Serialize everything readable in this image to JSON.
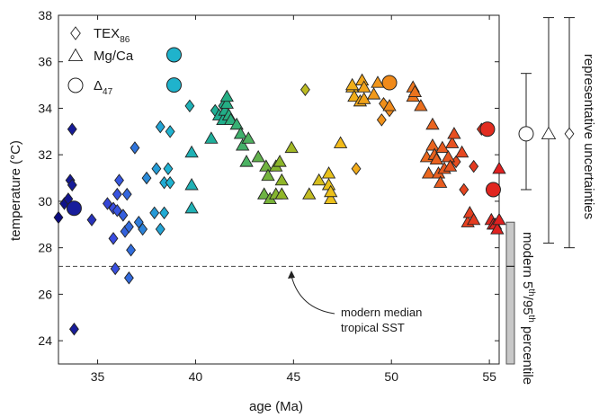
{
  "chart_data": {
    "type": "scatter",
    "xlabel": "age (Ma)",
    "ylabel": "temperature (°C)",
    "xlim": [
      33,
      55.5
    ],
    "ylim": [
      23,
      38
    ],
    "xticks": [
      35,
      40,
      45,
      50,
      55
    ],
    "yticks": [
      24,
      26,
      28,
      30,
      32,
      34,
      36,
      38
    ],
    "grid": false,
    "legend_placement": "top-left",
    "series": [
      {
        "name": "TEX86",
        "marker": "diamond",
        "points": [
          [
            33.0,
            29.3
          ],
          [
            33.3,
            29.9
          ],
          [
            33.5,
            30.1
          ],
          [
            33.6,
            30.9
          ],
          [
            33.7,
            30.7
          ],
          [
            33.7,
            33.1
          ],
          [
            33.8,
            24.5
          ],
          [
            34.7,
            29.2
          ],
          [
            35.5,
            29.9
          ],
          [
            35.8,
            29.7
          ],
          [
            35.8,
            28.4
          ],
          [
            35.9,
            27.1
          ],
          [
            36.0,
            29.6
          ],
          [
            36.0,
            30.3
          ],
          [
            36.1,
            30.9
          ],
          [
            36.3,
            29.4
          ],
          [
            36.4,
            28.7
          ],
          [
            36.5,
            30.3
          ],
          [
            36.6,
            28.9
          ],
          [
            36.6,
            26.7
          ],
          [
            36.7,
            27.9
          ],
          [
            36.9,
            32.3
          ],
          [
            37.1,
            29.1
          ],
          [
            37.3,
            28.8
          ],
          [
            37.5,
            31.0
          ],
          [
            37.9,
            29.5
          ],
          [
            38.0,
            31.4
          ],
          [
            38.2,
            28.8
          ],
          [
            38.2,
            33.2
          ],
          [
            38.4,
            30.8
          ],
          [
            38.4,
            29.5
          ],
          [
            38.6,
            31.4
          ],
          [
            38.7,
            30.8
          ],
          [
            38.7,
            33.0
          ],
          [
            39.7,
            34.1
          ],
          [
            41.0,
            33.9
          ],
          [
            41.4,
            34.1
          ],
          [
            45.6,
            34.8
          ],
          [
            48.2,
            31.4
          ],
          [
            49.5,
            33.5
          ],
          [
            49.6,
            34.2
          ],
          [
            49.9,
            33.9
          ],
          [
            53.3,
            31.7
          ],
          [
            53.7,
            30.5
          ],
          [
            54.2,
            31.5
          ],
          [
            54.6,
            33.1
          ]
        ]
      },
      {
        "name": "Mg/Ca",
        "marker": "triangle",
        "points": [
          [
            39.8,
            32.1
          ],
          [
            39.8,
            30.7
          ],
          [
            39.8,
            29.7
          ],
          [
            40.8,
            32.7
          ],
          [
            41.2,
            33.7
          ],
          [
            41.4,
            33.5
          ],
          [
            41.5,
            33.9
          ],
          [
            41.6,
            34.2
          ],
          [
            41.6,
            34.5
          ],
          [
            41.7,
            33.7
          ],
          [
            41.8,
            33.5
          ],
          [
            42.1,
            33.3
          ],
          [
            42.3,
            32.9
          ],
          [
            42.4,
            32.4
          ],
          [
            42.6,
            31.7
          ],
          [
            42.7,
            32.7
          ],
          [
            43.2,
            31.9
          ],
          [
            43.5,
            30.3
          ],
          [
            43.6,
            31.5
          ],
          [
            43.7,
            31.1
          ],
          [
            43.8,
            30.1
          ],
          [
            44.1,
            30.3
          ],
          [
            44.1,
            31.5
          ],
          [
            44.3,
            31.7
          ],
          [
            44.4,
            30.3
          ],
          [
            44.4,
            30.9
          ],
          [
            44.9,
            32.3
          ],
          [
            45.8,
            30.3
          ],
          [
            46.3,
            30.9
          ],
          [
            46.8,
            30.7
          ],
          [
            46.8,
            31.2
          ],
          [
            46.9,
            30.1
          ],
          [
            46.9,
            30.4
          ],
          [
            47.4,
            32.5
          ],
          [
            48.0,
            34.9
          ],
          [
            48.0,
            35.0
          ],
          [
            48.1,
            34.5
          ],
          [
            48.4,
            34.3
          ],
          [
            48.5,
            35.2
          ],
          [
            48.6,
            34.9
          ],
          [
            48.6,
            34.4
          ],
          [
            49.1,
            34.6
          ],
          [
            49.3,
            35.1
          ],
          [
            49.9,
            34.1
          ],
          [
            51.1,
            34.9
          ],
          [
            51.1,
            34.5
          ],
          [
            51.2,
            34.7
          ],
          [
            51.5,
            34.1
          ],
          [
            51.8,
            31.9
          ],
          [
            51.9,
            31.2
          ],
          [
            52.1,
            32.4
          ],
          [
            52.1,
            33.3
          ],
          [
            52.2,
            32.0
          ],
          [
            52.3,
            31.8
          ],
          [
            52.4,
            31.2
          ],
          [
            52.5,
            30.8
          ],
          [
            52.6,
            32.3
          ],
          [
            52.7,
            31.4
          ],
          [
            52.9,
            31.9
          ],
          [
            53.0,
            31.5
          ],
          [
            53.1,
            32.5
          ],
          [
            53.2,
            32.9
          ],
          [
            53.6,
            32.1
          ],
          [
            53.9,
            29.1
          ],
          [
            54.0,
            29.5
          ],
          [
            54.2,
            29.2
          ],
          [
            55.1,
            29.2
          ],
          [
            55.2,
            29.0
          ],
          [
            55.3,
            29.0
          ],
          [
            55.4,
            28.8
          ],
          [
            55.5,
            29.2
          ],
          [
            55.5,
            31.4
          ]
        ]
      },
      {
        "name": "Δ47",
        "marker": "circle",
        "points": [
          [
            33.8,
            29.7
          ],
          [
            38.9,
            36.3
          ],
          [
            38.9,
            35.0
          ],
          [
            49.9,
            35.1
          ],
          [
            54.9,
            33.1
          ],
          [
            55.2,
            30.5
          ]
        ]
      }
    ],
    "reference_line": {
      "label": "modern median tropical SST",
      "y": 27.2
    },
    "modern_percentile_bar": {
      "label": "modern 5th/95th percentile",
      "low": 23.0,
      "high": 29.1,
      "median": 27.2
    },
    "uncertainties": {
      "label": "representative uncertainties",
      "items": [
        {
          "marker": "circle",
          "center": 32.9,
          "low": 30.5,
          "high": 35.5
        },
        {
          "marker": "triangle",
          "center": 32.9,
          "low": 28.2,
          "high": 37.9
        },
        {
          "marker": "diamond",
          "center": 32.9,
          "low": 28.0,
          "high": 37.9
        }
      ]
    },
    "colormap": {
      "note_stops": [
        "#0a0a80",
        "#3a4de0",
        "#1fb3d3",
        "#1fae8a",
        "#8ab52a",
        "#f2c21a",
        "#f08a1a",
        "#e85a20",
        "#e02020"
      ]
    }
  },
  "legend": [
    {
      "label": "TEX",
      "sub": "86",
      "marker": "diamond"
    },
    {
      "label": "Mg/Ca",
      "sub": "",
      "marker": "triangle"
    },
    {
      "label": "Δ",
      "sub": "47",
      "marker": "circle"
    }
  ],
  "annotation": {
    "line1": "modern median",
    "line2": "tropical SST"
  },
  "side_labels": {
    "percentile_main": "modern 5",
    "percentile_sup1": "th",
    "percentile_mid": "/95",
    "percentile_sup2": "th",
    "percentile_end": " percentile",
    "uncertainties": "representative uncertainties"
  }
}
